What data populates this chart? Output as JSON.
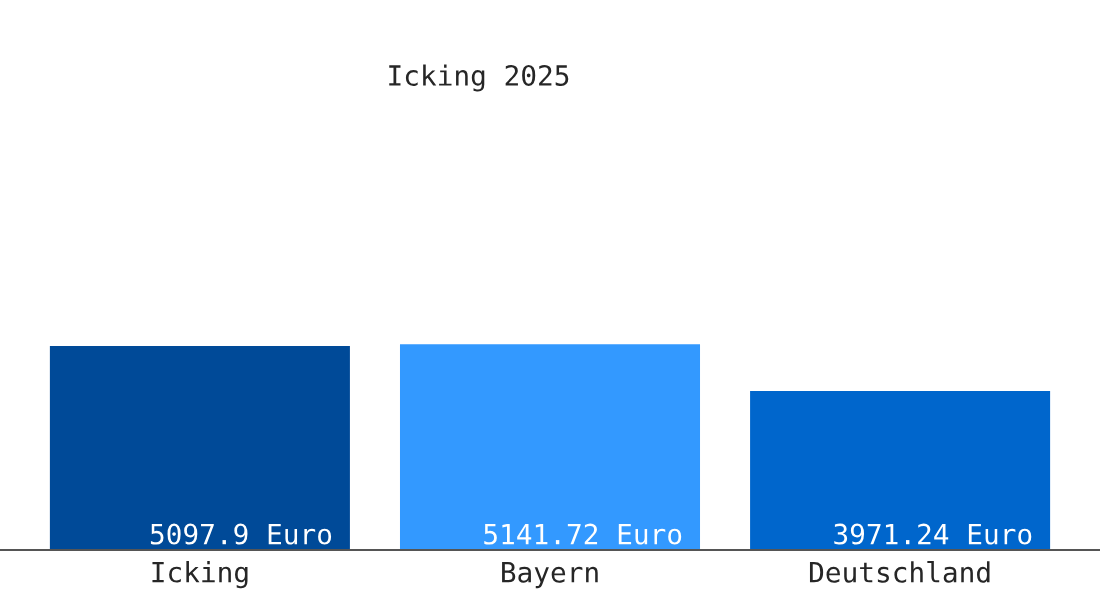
{
  "chart_data": {
    "type": "bar",
    "title": "Icking 2025",
    "categories": [
      "Icking",
      "Bayern",
      "Deutschland"
    ],
    "values": [
      5097.9,
      5141.72,
      3971.24
    ],
    "colors": [
      "#004a98",
      "#3399ff",
      "#0066cc"
    ],
    "value_labels": [
      "5097.9 Euro",
      "5141.72 Euro",
      "3971.24 Euro"
    ],
    "tick_labels": "x",
    "grid": false,
    "legend": false
  }
}
